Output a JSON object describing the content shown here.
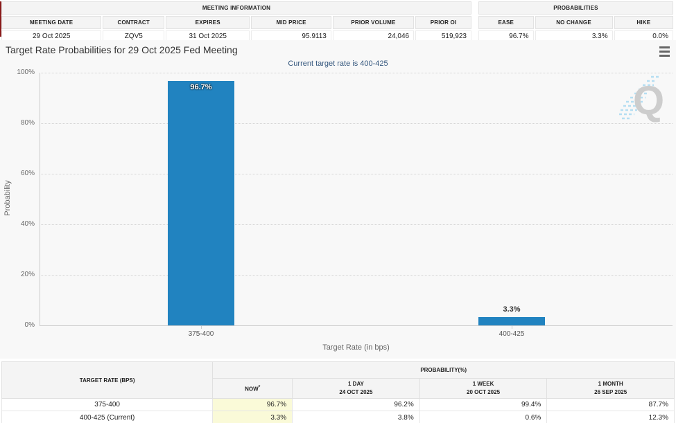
{
  "meeting_info": {
    "title": "MEETING INFORMATION",
    "columns": [
      "MEETING DATE",
      "CONTRACT",
      "EXPIRES",
      "MID PRICE",
      "PRIOR VOLUME",
      "PRIOR OI"
    ],
    "values": [
      "29 Oct 2025",
      "ZQV5",
      "31 Oct 2025",
      "95.9113",
      "24,046",
      "519,923"
    ]
  },
  "probabilities": {
    "title": "PROBABILITIES",
    "columns": [
      "EASE",
      "NO CHANGE",
      "HIKE"
    ],
    "values": [
      "96.7%",
      "3.3%",
      "0.0%"
    ]
  },
  "chart": {
    "title": "Target Rate Probabilities for 29 Oct 2025 Fed Meeting",
    "subtitle": "Current target rate is 400-425"
  },
  "chart_data": {
    "type": "bar",
    "title": "Target Rate Probabilities for 29 Oct 2025 Fed Meeting",
    "subtitle": "Current target rate is 400-425",
    "categories": [
      "375-400",
      "400-425"
    ],
    "values": [
      96.7,
      3.3
    ],
    "bar_labels": [
      "96.7%",
      "3.3%"
    ],
    "xlabel": "Target Rate (in bps)",
    "ylabel": "Probability",
    "ylim": [
      0,
      100
    ],
    "ytick_labels": [
      "0%",
      "20%",
      "40%",
      "60%",
      "80%",
      "100%"
    ],
    "grid": "horizontal dotted",
    "legend": "none",
    "bar_color": "#2183c0"
  },
  "history_table": {
    "rate_header": "TARGET RATE (BPS)",
    "group_header": "PROBABILITY(%)",
    "now_header": "NOW",
    "now_suffix": "*",
    "sub_headers": [
      {
        "line1": "1 DAY",
        "line2": "24 OCT 2025"
      },
      {
        "line1": "1 WEEK",
        "line2": "20 OCT 2025"
      },
      {
        "line1": "1 MONTH",
        "line2": "26 SEP 2025"
      }
    ],
    "rows": [
      {
        "rate": "375-400",
        "now": "96.7%",
        "day": "96.2%",
        "week": "99.4%",
        "month": "87.7%"
      },
      {
        "rate": "400-425 (Current)",
        "now": "3.3%",
        "day": "3.8%",
        "week": "0.6%",
        "month": "12.3%"
      }
    ]
  },
  "colors": {
    "bar": "#2183c0",
    "subtitle_text": "#33567d",
    "now_highlight": "#fafad8",
    "red_edge": "#8b1b1b",
    "header_bg": "#f4f4f4",
    "chart_bg": "#f8f8f8"
  }
}
